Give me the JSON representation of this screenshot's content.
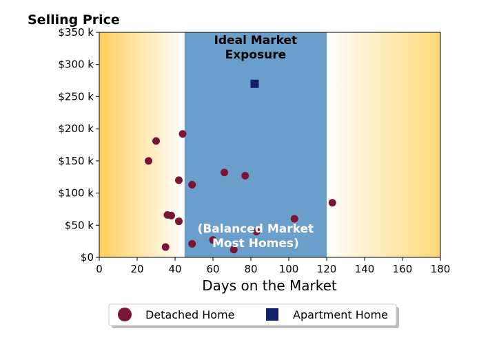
{
  "chart_data": {
    "type": "scatter",
    "title": "Selling Price",
    "xlabel": "Days on the Market",
    "ylabel": "",
    "xlim": [
      0,
      180
    ],
    "ylim": [
      0,
      350000
    ],
    "xticks": [
      0,
      20,
      40,
      60,
      80,
      100,
      120,
      140,
      160,
      180
    ],
    "yticks": [
      0,
      50000,
      100000,
      150000,
      200000,
      250000,
      300000,
      350000
    ],
    "ytick_labels": [
      "$0",
      "$50 k",
      "$100 k",
      "$150 k",
      "$200 k",
      "$250 k",
      "$300 k",
      "$350 k"
    ],
    "grid": false,
    "legend_position": "bottom-center",
    "band": {
      "x_start": 45,
      "x_end": 120,
      "color": "#6a9fcb"
    },
    "annotations": {
      "top_line1": "Ideal Market",
      "top_line2": "Exposure",
      "bottom_line1": "(Balanced Market",
      "bottom_line2": "Most Homes)"
    },
    "series": [
      {
        "name": "Detached Home",
        "marker": "circle",
        "color": "#7b1535",
        "points": [
          {
            "x": 26,
            "y": 150000
          },
          {
            "x": 30,
            "y": 181000
          },
          {
            "x": 35,
            "y": 16000
          },
          {
            "x": 36,
            "y": 66000
          },
          {
            "x": 38,
            "y": 65000
          },
          {
            "x": 42,
            "y": 120000
          },
          {
            "x": 42,
            "y": 56000
          },
          {
            "x": 44,
            "y": 192000
          },
          {
            "x": 49,
            "y": 113000
          },
          {
            "x": 49,
            "y": 21000
          },
          {
            "x": 60,
            "y": 27000
          },
          {
            "x": 66,
            "y": 132000
          },
          {
            "x": 71,
            "y": 12000
          },
          {
            "x": 77,
            "y": 127000
          },
          {
            "x": 83,
            "y": 40000
          },
          {
            "x": 103,
            "y": 60000
          },
          {
            "x": 123,
            "y": 85000
          }
        ]
      },
      {
        "name": "Apartment Home",
        "marker": "square",
        "color": "#121f6b",
        "points": [
          {
            "x": 82,
            "y": 270000
          }
        ]
      }
    ]
  }
}
